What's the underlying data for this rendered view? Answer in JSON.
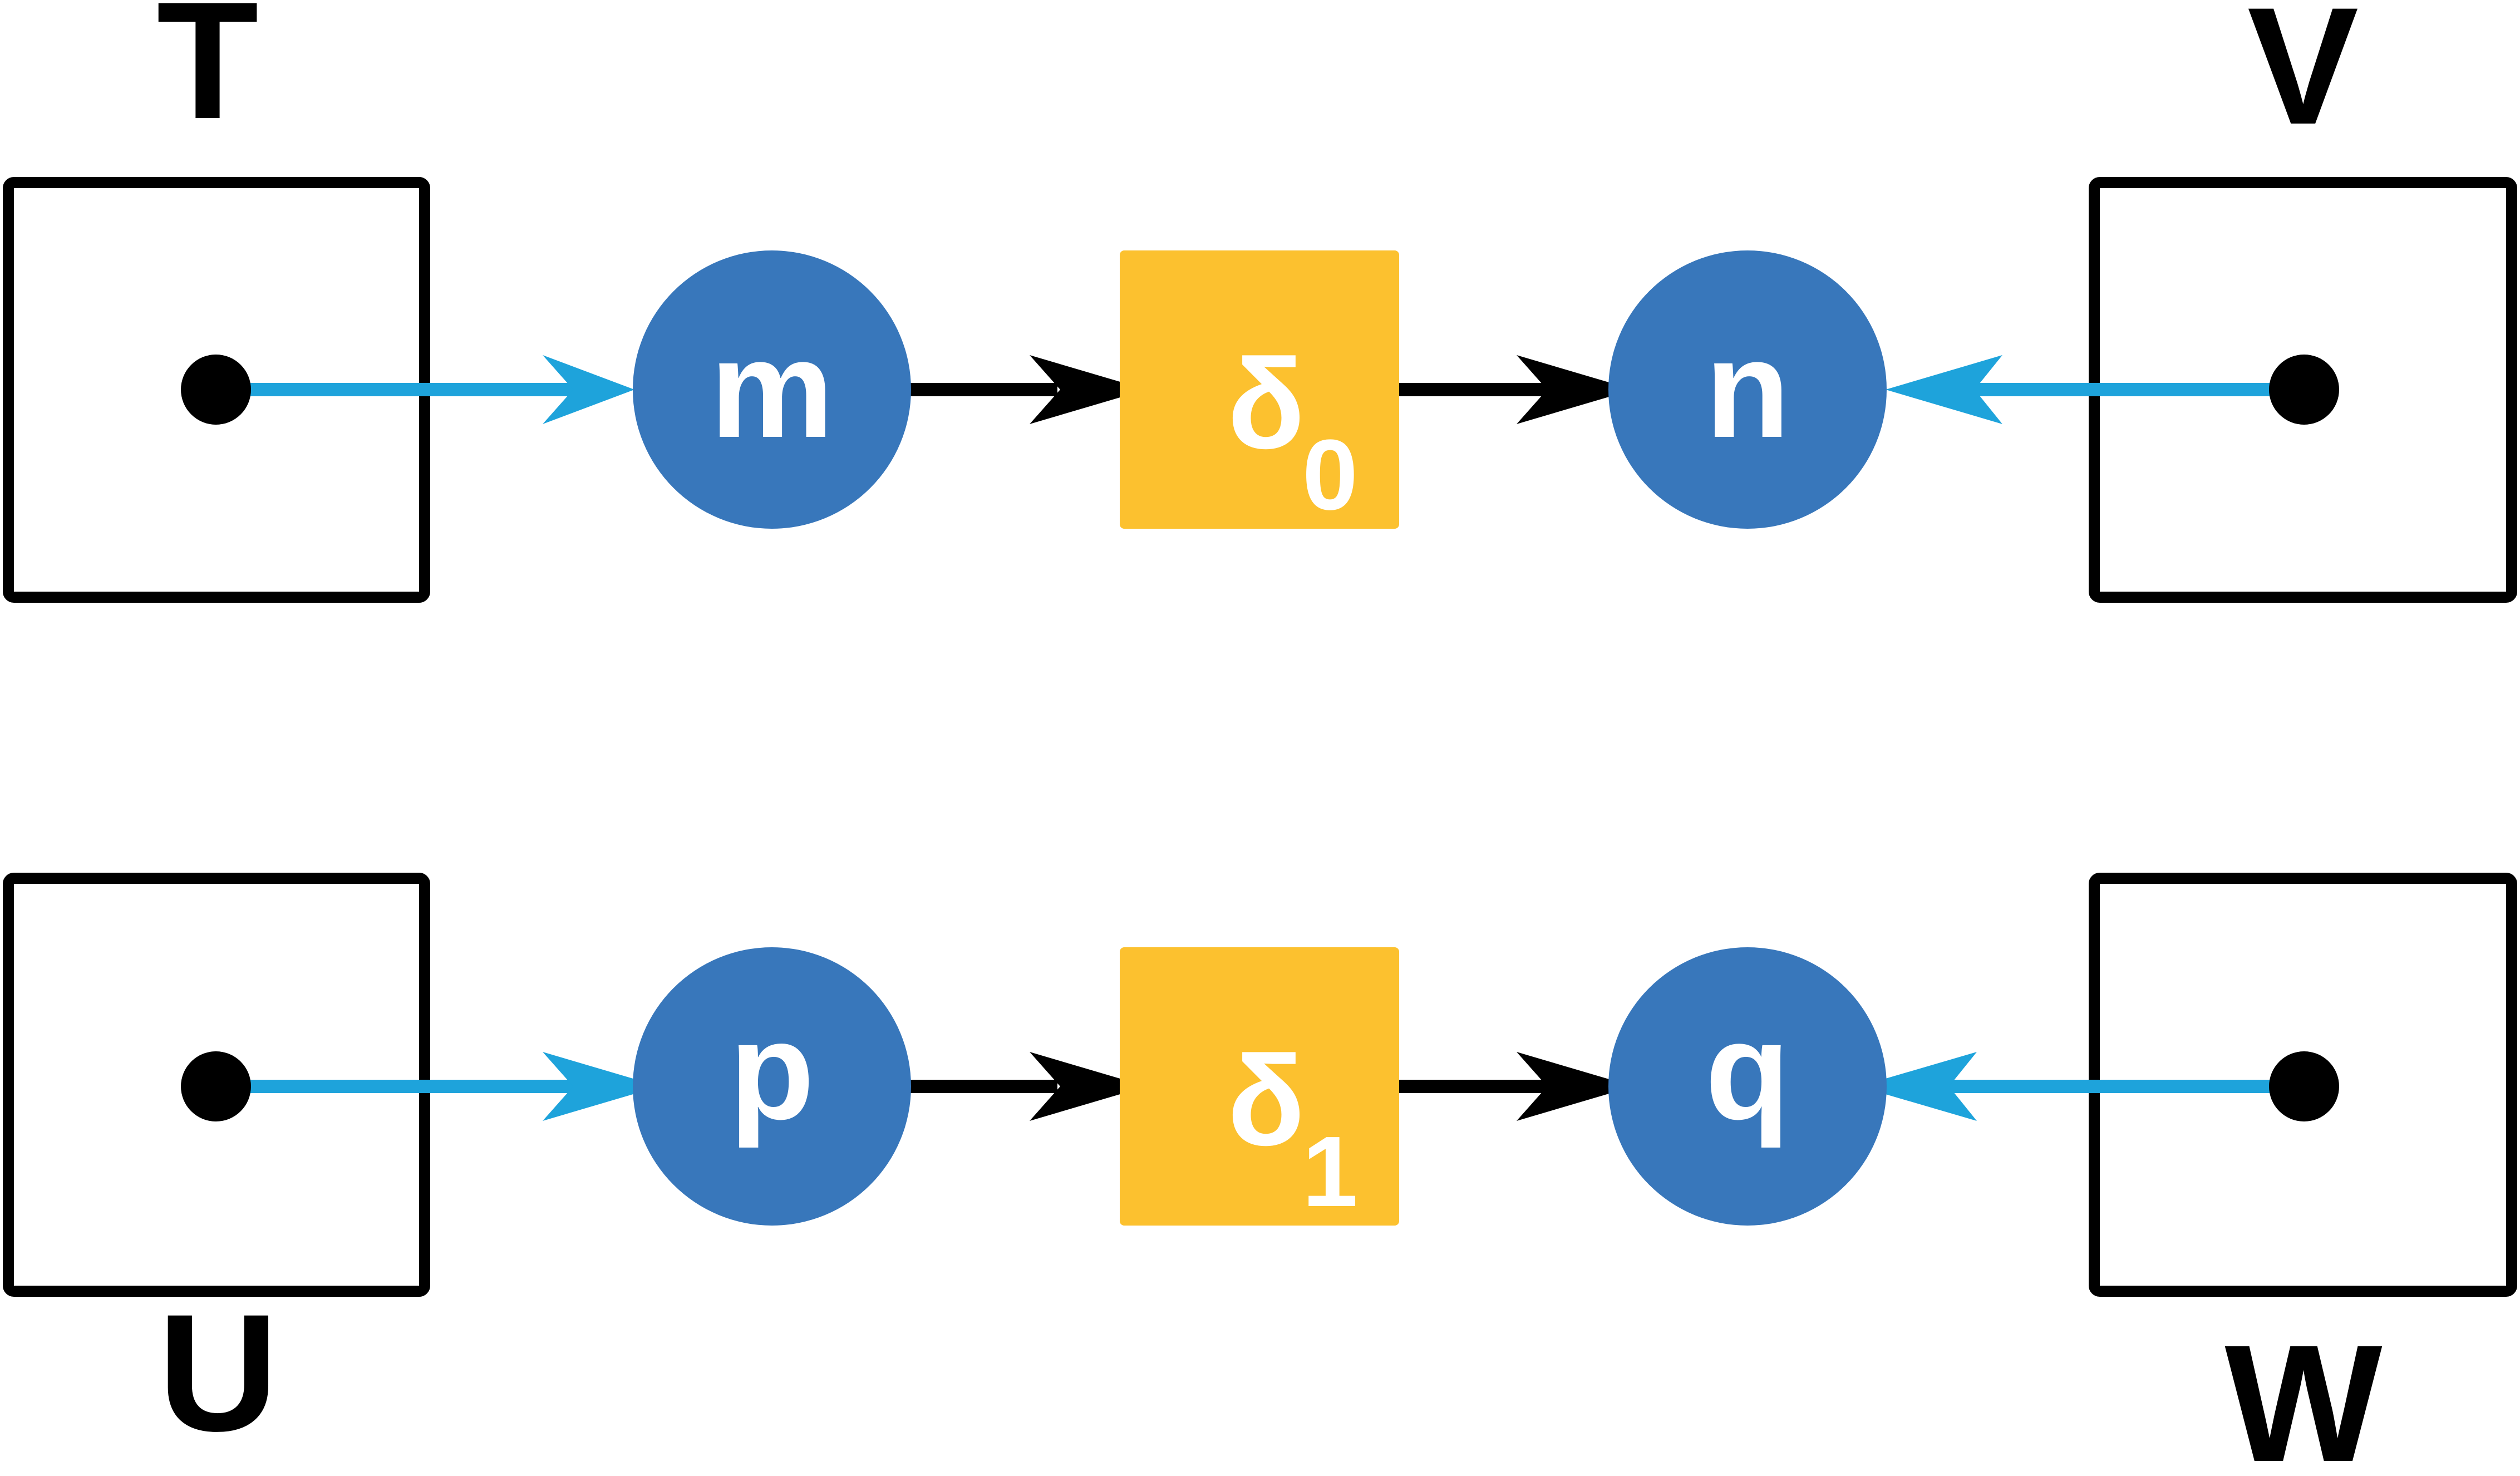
{
  "colors": {
    "node": "#3877bb",
    "operator": "#fcc12f",
    "input_arrow": "#1ea3db",
    "flow_arrow": "#000000",
    "frame": "#000000"
  },
  "frames": {
    "T": "T",
    "U": "U",
    "V": "V",
    "W": "W"
  },
  "nodes": {
    "m": "m",
    "n": "n",
    "p": "p",
    "q": "q"
  },
  "operators": {
    "top": {
      "symbol": "δ",
      "subscript": "0"
    },
    "bottom": {
      "symbol": "δ",
      "subscript": "1"
    }
  }
}
